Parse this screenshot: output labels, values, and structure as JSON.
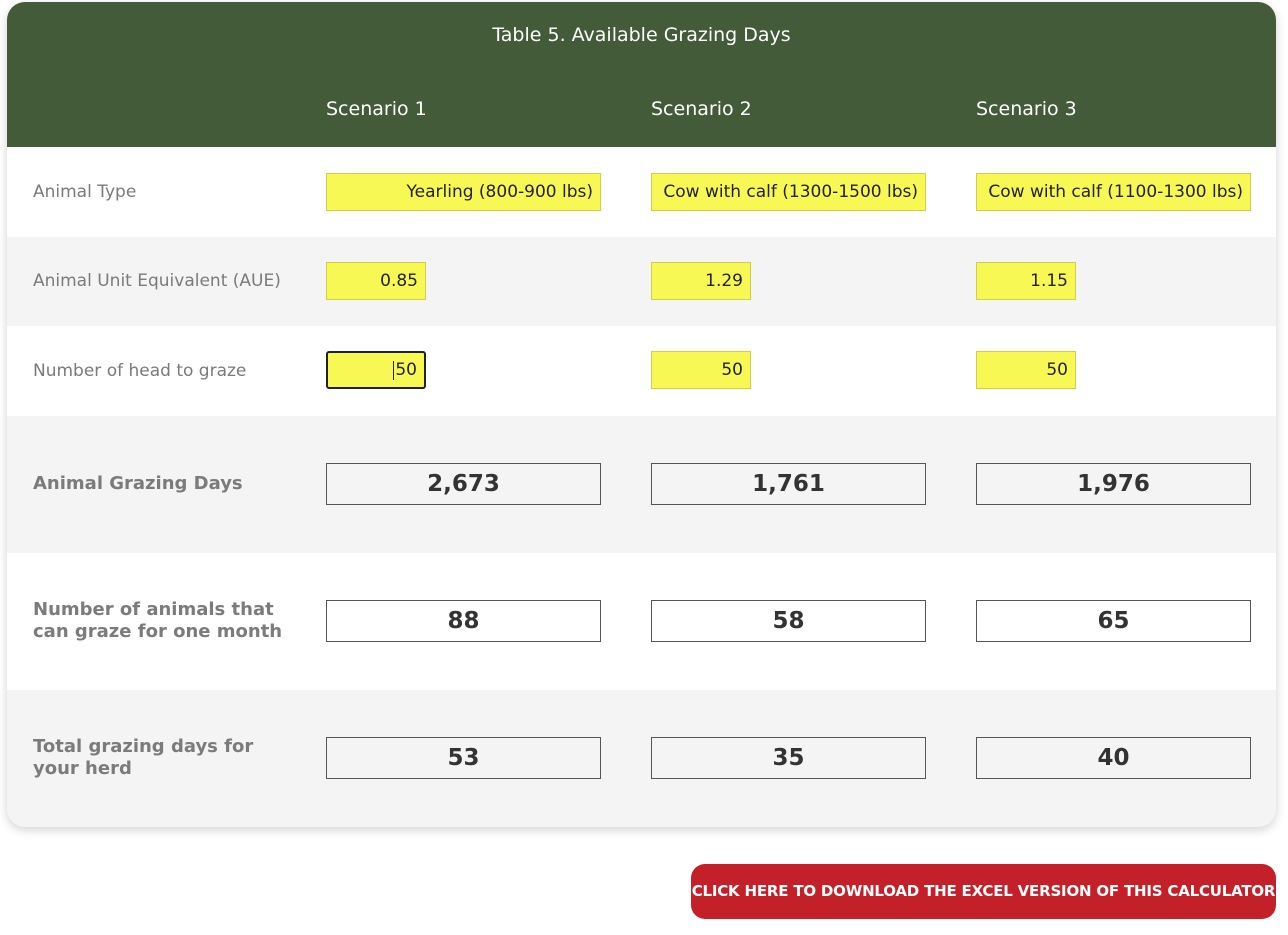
{
  "table": {
    "title": "Table 5. Available Grazing Days",
    "scenarios": [
      "Scenario 1",
      "Scenario 2",
      "Scenario 3"
    ]
  },
  "rows": {
    "animal_type": {
      "label": "Animal Type",
      "values": [
        "Yearling (800-900 lbs)",
        "Cow with calf (1300-1500 lbs)",
        "Cow with calf (1100-1300 lbs)"
      ]
    },
    "aue": {
      "label": "Animal Unit Equivalent (AUE)",
      "values": [
        "0.85",
        "1.29",
        "1.15"
      ]
    },
    "head": {
      "label": "Number of head to graze",
      "values": [
        "50",
        "50",
        "50"
      ]
    },
    "grazing_days": {
      "label": "Animal Grazing Days",
      "values": [
        "2,673",
        "1,761",
        "1,976"
      ]
    },
    "animals_month": {
      "label_line1": "Number of animals that",
      "label_line2": "can graze for one month",
      "values": [
        "88",
        "58",
        "65"
      ]
    },
    "total_days": {
      "label_line1": "Total grazing days for",
      "label_line2": "your herd",
      "values": [
        "53",
        "35",
        "40"
      ]
    }
  },
  "download_button": {
    "label": "CLICK HERE TO DOWNLOAD THE EXCEL VERSION OF THIS CALCULATOR"
  },
  "colors": {
    "header_green": "#435b39",
    "input_yellow": "#f8f855",
    "button_red": "#c4202a"
  }
}
